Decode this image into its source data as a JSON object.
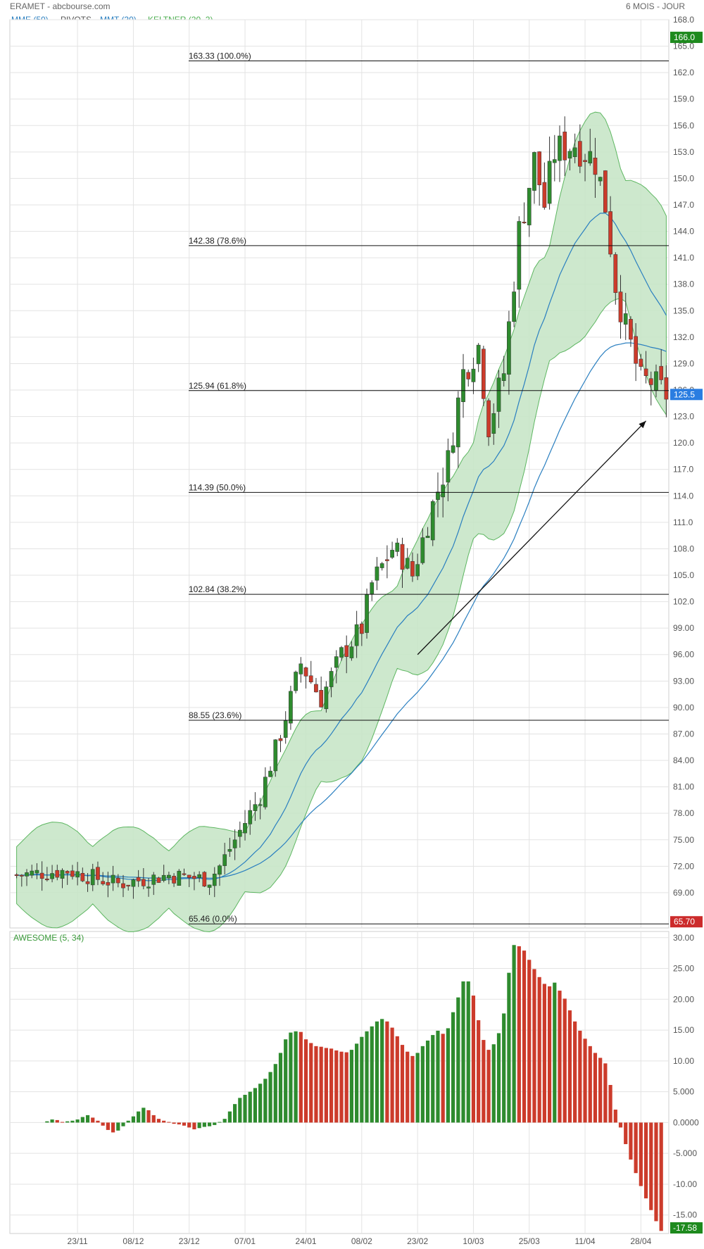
{
  "header": {
    "left_title": "ERAMET - abcbourse.com",
    "right_title": "6 MOIS - JOUR"
  },
  "indicators": {
    "mme": "MME (50)",
    "pivots": "PIVOTS",
    "mmt": "MMT (20)",
    "keltner": "KELTNER (20, 2)"
  },
  "colors": {
    "up": "#2e8b2e",
    "down": "#cc3b2b",
    "band_fill": "#c8e6c8",
    "band_line": "#4caf50",
    "ma": "#2a7fc0",
    "grid": "#e3e3e3"
  },
  "chart_data": [
    {
      "type": "candlestick",
      "ylim": [
        65.0,
        168.0
      ],
      "yticks": [
        "69.00",
        "72.00",
        "75.00",
        "78.00",
        "81.00",
        "84.00",
        "87.00",
        "90.00",
        "93.00",
        "96.00",
        "99.00",
        "102.0",
        "105.0",
        "108.0",
        "111.0",
        "114.0",
        "117.0",
        "120.0",
        "123.0",
        "126.0",
        "129.0",
        "132.0",
        "135.0",
        "138.0",
        "141.0",
        "144.0",
        "147.0",
        "150.0",
        "153.0",
        "156.0",
        "159.0",
        "162.0",
        "165.0",
        "168.0"
      ],
      "xticks": [
        {
          "label": "23/11",
          "index": 12
        },
        {
          "label": "08/12",
          "index": 23
        },
        {
          "label": "23/12",
          "index": 34
        },
        {
          "label": "07/01",
          "index": 45
        },
        {
          "label": "24/01",
          "index": 57
        },
        {
          "label": "08/02",
          "index": 68
        },
        {
          "label": "23/02",
          "index": 79
        },
        {
          "label": "10/03",
          "index": 90
        },
        {
          "label": "25/03",
          "index": 101
        },
        {
          "label": "11/04",
          "index": 112
        },
        {
          "label": "28/04",
          "index": 123
        }
      ],
      "fib_levels": [
        {
          "value": 163.33,
          "label": "163.33  (100.0%)"
        },
        {
          "value": 142.38,
          "label": "142.38  (78.6%)"
        },
        {
          "value": 125.94,
          "label": "125.94  (61.8%)"
        },
        {
          "value": 114.39,
          "label": "114.39  (50.0%)"
        },
        {
          "value": 102.84,
          "label": "102.84  (38.2%)"
        },
        {
          "value": 88.55,
          "label": "88.55  (23.6%)"
        },
        {
          "value": 65.46,
          "label": "65.46  (0.0%)"
        }
      ],
      "price_tags": [
        {
          "value": 166.0,
          "label": "166.0",
          "color": "#1e8a1e"
        },
        {
          "value": 125.5,
          "label": "125.5",
          "color": "#2a7de1"
        },
        {
          "value": 65.7,
          "label": "65.70",
          "color": "#cc2b2b"
        }
      ],
      "arrow": {
        "from": [
          79,
          96.0
        ],
        "to": [
          124,
          122.5
        ]
      },
      "anchors": [
        [
          0,
          71
        ],
        [
          10,
          71.5
        ],
        [
          20,
          70
        ],
        [
          30,
          71
        ],
        [
          38,
          70.5
        ],
        [
          40,
          72
        ],
        [
          44,
          76
        ],
        [
          48,
          80
        ],
        [
          52,
          87
        ],
        [
          56,
          95
        ],
        [
          60,
          91
        ],
        [
          64,
          96
        ],
        [
          68,
          99
        ],
        [
          70,
          104
        ],
        [
          74,
          108
        ],
        [
          76,
          107
        ],
        [
          78,
          105
        ],
        [
          82,
          113
        ],
        [
          85,
          118
        ],
        [
          88,
          128
        ],
        [
          91,
          131
        ],
        [
          93,
          122
        ],
        [
          96,
          128
        ],
        [
          99,
          144
        ],
        [
          102,
          152
        ],
        [
          104,
          147
        ],
        [
          106,
          153
        ],
        [
          110,
          154
        ],
        [
          114,
          152
        ],
        [
          116,
          147
        ],
        [
          118,
          138
        ],
        [
          120,
          133
        ],
        [
          123,
          127
        ],
        [
          125,
          127
        ],
        [
          128,
          125.5
        ]
      ],
      "keltner_spread": 6.5,
      "ma_lengths": [
        20,
        50
      ]
    },
    {
      "type": "bar",
      "title": "AWESOME (5, 34)",
      "ylim": [
        -18.0,
        31.0
      ],
      "yticks": [
        "30.00",
        "25.00",
        "20.00",
        "15.00",
        "10.00",
        "5.000",
        "0.0000",
        "-5.000",
        "-10.00",
        "-15.00"
      ],
      "last_value_label": "-17.58",
      "values": [
        0,
        0,
        0,
        0,
        0,
        0,
        0.2,
        0.5,
        0.4,
        0.1,
        0.2,
        0.3,
        0.5,
        0.9,
        1.2,
        0.8,
        0.3,
        -0.5,
        -1.2,
        -1.6,
        -1.3,
        -0.6,
        0.3,
        1.0,
        1.8,
        2.4,
        2.0,
        1.2,
        0.6,
        0.3,
        0.1,
        -0.2,
        -0.3,
        -0.5,
        -0.8,
        -1.1,
        -0.9,
        -0.7,
        -0.6,
        -0.4,
        0.1,
        0.6,
        1.8,
        3.0,
        4.0,
        4.5,
        5.0,
        5.6,
        6.3,
        7.1,
        8.2,
        9.5,
        11.3,
        13.5,
        14.6,
        14.8,
        14.7,
        13.5,
        12.9,
        12.4,
        12.3,
        12.1,
        12.0,
        11.7,
        11.5,
        11.4,
        11.8,
        12.8,
        13.9,
        14.8,
        15.6,
        16.4,
        16.8,
        16.4,
        15.4,
        14.0,
        12.6,
        11.5,
        10.8,
        11.3,
        12.4,
        13.3,
        14.2,
        14.9,
        14.4,
        15.3,
        17.9,
        20.3,
        22.9,
        22.9,
        20.6,
        16.6,
        13.4,
        11.8,
        12.7,
        14.5,
        17.7,
        24.3,
        28.8,
        28.6,
        27.9,
        26.4,
        24.9,
        23.6,
        22.5,
        22.1,
        22.7,
        21.4,
        20.1,
        18.2,
        16.4,
        14.9,
        13.6,
        12.4,
        11.3,
        10.5,
        9.6,
        6.1,
        2.1,
        -0.8,
        -3.5,
        -6.0,
        -8.2,
        -10.3,
        -12.3,
        -14.2,
        -16.0,
        -17.58
      ]
    }
  ]
}
